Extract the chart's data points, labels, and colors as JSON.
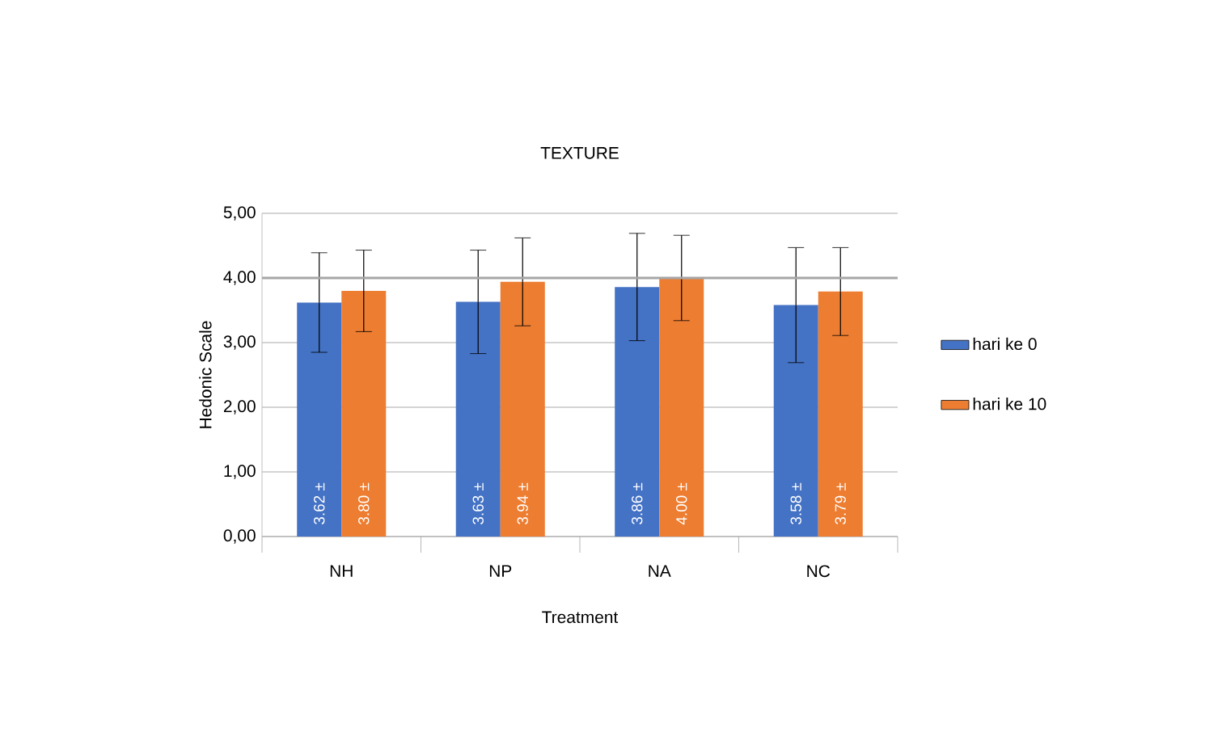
{
  "chart_data": {
    "type": "bar",
    "title": "TEXTURE",
    "xlabel": "Treatment",
    "ylabel": "Hedonic Scale",
    "categories": [
      "NH",
      "NP",
      "NA",
      "NC"
    ],
    "series": [
      {
        "name": "hari ke 0",
        "color": "#4472c4",
        "values": [
          3.62,
          3.63,
          3.86,
          3.58
        ],
        "errors": [
          0.77,
          0.8,
          0.83,
          0.89
        ],
        "value_labels": [
          "3.62 ±",
          "3.63 ±",
          "3.86 ±",
          "3.58 ±"
        ]
      },
      {
        "name": "hari ke 10",
        "color": "#ed7d31",
        "values": [
          3.8,
          3.94,
          4.0,
          3.79
        ],
        "errors": [
          0.63,
          0.68,
          0.66,
          0.68
        ],
        "value_labels": [
          "3.80 ±",
          "3.94 ±",
          "4.00 ±",
          "3.79 ±"
        ]
      }
    ],
    "ylim": [
      0,
      5
    ],
    "yticks": [
      {
        "value": 0,
        "label": "0,00"
      },
      {
        "value": 1,
        "label": "1,00"
      },
      {
        "value": 2,
        "label": "2,00"
      },
      {
        "value": 3,
        "label": "3,00"
      },
      {
        "value": 4,
        "label": "4,00"
      },
      {
        "value": 5,
        "label": "5,00"
      }
    ],
    "ref_lines": [
      {
        "axis": "y",
        "value": 4,
        "color": "#a6a6a6"
      }
    ],
    "grid": "y",
    "legend": "right"
  }
}
